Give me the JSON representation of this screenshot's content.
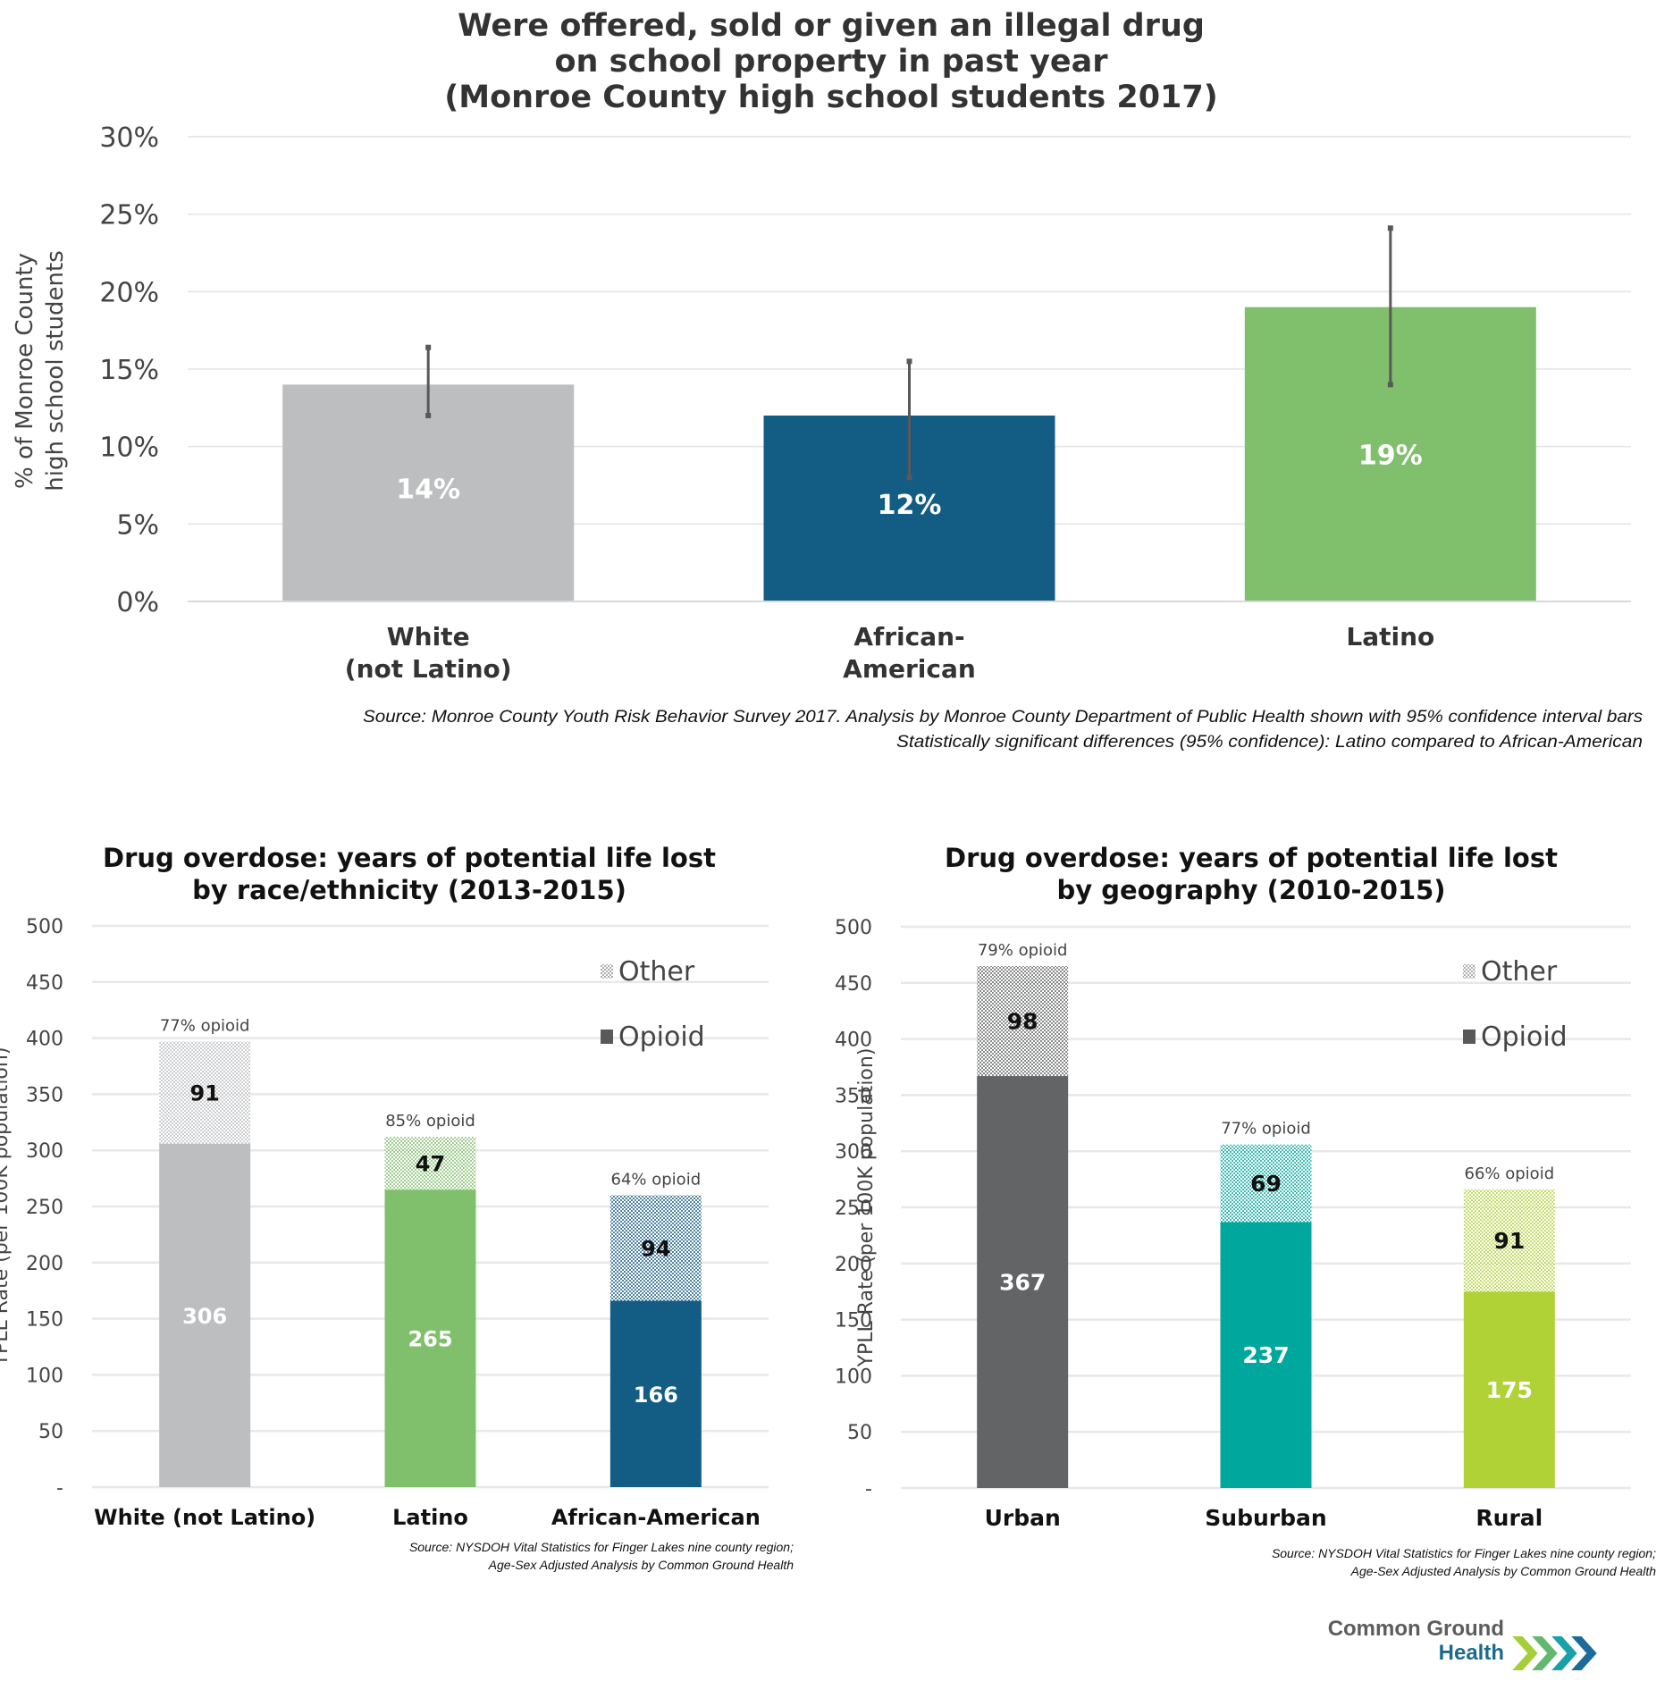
{
  "chart_data": [
    {
      "id": "top",
      "type": "bar",
      "title": [
        "Were offered, sold or given an illegal drug",
        "on school property in past year",
        "(Monroe County high school students 2017)"
      ],
      "xlabel": "",
      "ylabel": [
        "% of Monroe County",
        "high school students"
      ],
      "ylim": [
        0,
        30
      ],
      "yticks": [
        0,
        5,
        10,
        15,
        20,
        25,
        30
      ],
      "ytick_labels": [
        "0%",
        "5%",
        "10%",
        "15%",
        "20%",
        "25%",
        "30%"
      ],
      "grid": true,
      "categories": [
        [
          "White",
          "(not Latino)"
        ],
        [
          "African-",
          "American"
        ],
        [
          "Latino"
        ]
      ],
      "values": [
        14,
        12,
        19
      ],
      "value_labels": [
        "14%",
        "12%",
        "19%"
      ],
      "error_bars": [
        [
          12,
          16.4
        ],
        [
          8,
          15.5
        ],
        [
          14,
          24.1
        ]
      ],
      "colors": [
        "#bcbec0",
        "#135c84",
        "#80bf6b"
      ],
      "source": [
        "Source: Monroe County Youth Risk Behavior Survey 2017.  Analysis by Monroe County Department of Public Health shown with 95% confidence interval bars",
        "Statistically significant differences (95% confidence): Latino compared to African-American"
      ]
    },
    {
      "id": "race",
      "type": "bar",
      "stacked": true,
      "title": [
        "Drug overdose: years of potential life lost",
        "by race/ethnicity (2013-2015)"
      ],
      "ylabel": "YPLL Rate (per 100K population)",
      "ylim": [
        0,
        500
      ],
      "yticks": [
        0,
        50,
        100,
        150,
        200,
        250,
        300,
        350,
        400,
        450,
        500
      ],
      "ytick_labels": [
        "-",
        "50",
        "100",
        "150",
        "200",
        "250",
        "300",
        "350",
        "400",
        "450",
        "500"
      ],
      "grid": true,
      "legend": {
        "position": "top-right",
        "entries": [
          "Other",
          "Opioid"
        ]
      },
      "categories": [
        "White (not Latino)",
        "Latino",
        "African-American"
      ],
      "series": [
        {
          "name": "Opioid",
          "values": [
            306,
            265,
            166
          ],
          "colors": [
            "#bcbec0",
            "#80bf6b",
            "#135c84"
          ]
        },
        {
          "name": "Other",
          "values": [
            91,
            47,
            94
          ],
          "colors": [
            "#d9d9d9",
            "#c5e3b8",
            "#7d9fbd"
          ]
        }
      ],
      "top_labels": [
        "77% opioid",
        "85% opioid",
        "64% opioid"
      ],
      "source": [
        "Source: NYSDOH Vital Statistics for Finger Lakes nine county region;",
        "Age-Sex Adjusted Analysis by Common Ground Health"
      ]
    },
    {
      "id": "geo",
      "type": "bar",
      "stacked": true,
      "title": [
        "Drug overdose: years of potential life lost",
        "by geography (2010-2015)"
      ],
      "ylabel": "YPLL Rate (per 100K population)",
      "ylim": [
        0,
        500
      ],
      "yticks": [
        0,
        50,
        100,
        150,
        200,
        250,
        300,
        350,
        400,
        450,
        500
      ],
      "ytick_labels": [
        "-",
        "50",
        "100",
        "150",
        "200",
        "250",
        "300",
        "350",
        "400",
        "450",
        "500"
      ],
      "grid": true,
      "legend": {
        "position": "top-right",
        "entries": [
          "Other",
          "Opioid"
        ]
      },
      "categories": [
        "Urban",
        "Suburban",
        "Rural"
      ],
      "series": [
        {
          "name": "Opioid",
          "values": [
            367,
            237,
            175
          ],
          "colors": [
            "#636466",
            "#00a79d",
            "#b0d236"
          ]
        },
        {
          "name": "Other",
          "values": [
            98,
            69,
            91
          ],
          "colors": [
            "#b3b3b3",
            "#8fd6cf",
            "#dcebb0"
          ]
        }
      ],
      "top_labels": [
        "79% opioid",
        "77% opioid",
        "66% opioid"
      ],
      "source": [
        "Source: NYSDOH Vital Statistics for Finger Lakes nine county region;",
        "Age-Sex Adjusted Analysis by Common Ground Health"
      ]
    }
  ],
  "logo": {
    "line1": "Common Ground",
    "line2": "Health"
  }
}
